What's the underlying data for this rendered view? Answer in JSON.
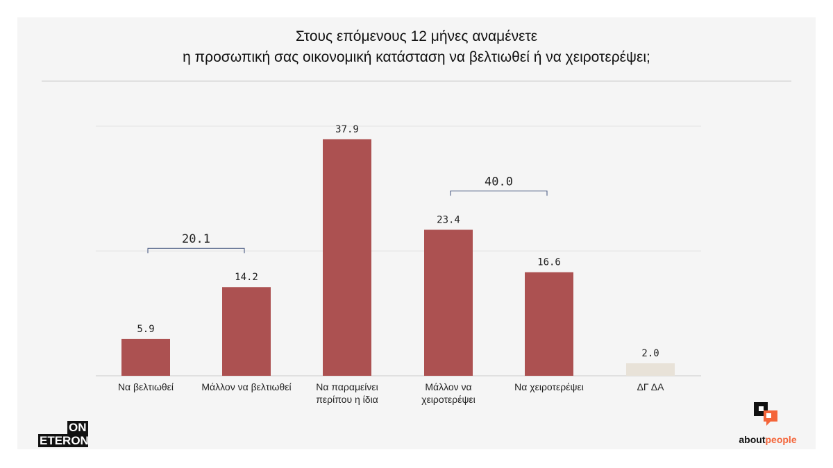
{
  "chart_data": {
    "type": "bar",
    "title": [
      "Στους επόμενους 12 μήνες αναμένετε",
      "η προσωπική σας οικονομική κατάσταση να βελτιωθεί ή να χειροτερέψει;"
    ],
    "categories": [
      [
        "Να βελτιωθεί"
      ],
      [
        "Μάλλον να βελτιωθεί"
      ],
      [
        "Να παραμείνει",
        "περίπου η ίδια"
      ],
      [
        "Μάλλον να",
        "χειροτερέψει"
      ],
      [
        "Να χειροτερέψει"
      ],
      [
        "ΔΓ ΔΑ"
      ]
    ],
    "values": [
      5.9,
      14.2,
      37.9,
      23.4,
      16.6,
      2.0
    ],
    "labels": [
      "5.9",
      "14.2",
      "37.9",
      "23.4",
      "16.6",
      "2.0"
    ],
    "colors": [
      "#ac5151",
      "#ac5151",
      "#ac5151",
      "#ac5151",
      "#ac5151",
      "#e8e2d8"
    ],
    "ylim": [
      0,
      40
    ],
    "gridlines": [
      0,
      20,
      40
    ],
    "grid": true,
    "brackets": [
      {
        "from": 0,
        "to": 1,
        "label": "20.1"
      },
      {
        "from": 3,
        "to": 4,
        "label": "40.0"
      }
    ]
  },
  "logos": {
    "left": [
      "ON",
      "ETERON"
    ],
    "right": [
      "about",
      "people"
    ]
  }
}
